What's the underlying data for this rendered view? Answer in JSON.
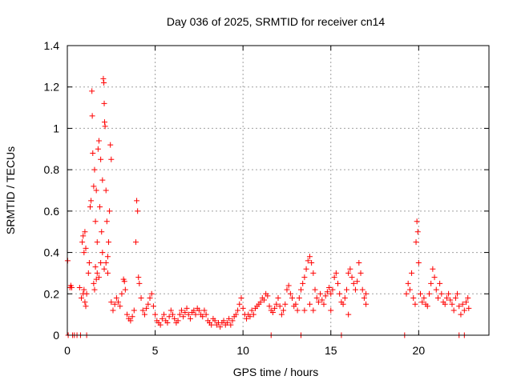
{
  "chart_data": {
    "type": "scatter",
    "title": "Day 036 of 2025, SRMTID for receiver cn14",
    "xlabel": "GPS time / hours",
    "ylabel": "SRMTID / TECUs",
    "xlim": [
      0,
      24
    ],
    "ylim": [
      0,
      1.4
    ],
    "xticks": [
      0,
      5,
      10,
      15,
      20
    ],
    "xtick_labels": [
      "0",
      "5",
      "10",
      "15",
      "20"
    ],
    "yticks": [
      0,
      0.2,
      0.4,
      0.6,
      0.8,
      1.0,
      1.2,
      1.4
    ],
    "ytick_labels": [
      "0",
      "0.2",
      "0.4",
      "0.6",
      "0.8",
      "1",
      "1.2",
      "1.4"
    ],
    "grid": true,
    "marker": "plus",
    "color": "#ff0000",
    "series": [
      {
        "name": "SRMTID",
        "points": [
          [
            0.02,
            0.36
          ],
          [
            0.15,
            0.23
          ],
          [
            0.2,
            0.24
          ],
          [
            0.25,
            0.23
          ],
          [
            0.7,
            0.23
          ],
          [
            0.8,
            0.18
          ],
          [
            0.9,
            0.2
          ],
          [
            0.95,
            0.22
          ],
          [
            1.0,
            0.16
          ],
          [
            1.05,
            0.14
          ],
          [
            1.1,
            0.2
          ],
          [
            0.85,
            0.45
          ],
          [
            0.9,
            0.48
          ],
          [
            0.95,
            0.4
          ],
          [
            1.0,
            0.5
          ],
          [
            1.05,
            0.42
          ],
          [
            1.2,
            0.3
          ],
          [
            1.25,
            0.35
          ],
          [
            1.3,
            0.62
          ],
          [
            1.35,
            0.65
          ],
          [
            1.4,
            1.18
          ],
          [
            1.42,
            1.06
          ],
          [
            1.45,
            0.88
          ],
          [
            1.5,
            0.72
          ],
          [
            1.55,
            0.8
          ],
          [
            1.6,
            0.55
          ],
          [
            1.65,
            0.7
          ],
          [
            1.7,
            0.45
          ],
          [
            1.75,
            0.9
          ],
          [
            1.8,
            0.94
          ],
          [
            1.85,
            0.62
          ],
          [
            1.9,
            0.85
          ],
          [
            1.95,
            0.5
          ],
          [
            2.0,
            0.75
          ],
          [
            2.05,
            1.24
          ],
          [
            2.08,
            1.22
          ],
          [
            2.1,
            1.12
          ],
          [
            2.12,
            1.03
          ],
          [
            2.15,
            1.01
          ],
          [
            2.2,
            0.7
          ],
          [
            2.25,
            0.55
          ],
          [
            2.3,
            0.38
          ],
          [
            2.35,
            0.45
          ],
          [
            2.4,
            0.6
          ],
          [
            2.45,
            0.92
          ],
          [
            2.5,
            0.85
          ],
          [
            1.6,
            0.33
          ],
          [
            1.7,
            0.3
          ],
          [
            1.8,
            0.28
          ],
          [
            1.9,
            0.35
          ],
          [
            2.0,
            0.4
          ],
          [
            2.1,
            0.32
          ],
          [
            1.5,
            0.25
          ],
          [
            1.55,
            0.22
          ],
          [
            1.65,
            0.27
          ],
          [
            2.2,
            0.35
          ],
          [
            2.3,
            0.3
          ],
          [
            2.5,
            0.16
          ],
          [
            2.6,
            0.12
          ],
          [
            2.7,
            0.15
          ],
          [
            2.8,
            0.18
          ],
          [
            2.9,
            0.16
          ],
          [
            3.0,
            0.14
          ],
          [
            3.1,
            0.2
          ],
          [
            3.2,
            0.27
          ],
          [
            3.25,
            0.26
          ],
          [
            3.3,
            0.22
          ],
          [
            3.4,
            0.1
          ],
          [
            3.5,
            0.08
          ],
          [
            3.6,
            0.07
          ],
          [
            3.7,
            0.09
          ],
          [
            3.8,
            0.12
          ],
          [
            3.9,
            0.45
          ],
          [
            3.95,
            0.65
          ],
          [
            4.0,
            0.6
          ],
          [
            4.05,
            0.28
          ],
          [
            4.1,
            0.25
          ],
          [
            4.2,
            0.18
          ],
          [
            4.3,
            0.12
          ],
          [
            4.4,
            0.1
          ],
          [
            4.5,
            0.13
          ],
          [
            4.6,
            0.15
          ],
          [
            4.7,
            0.18
          ],
          [
            4.8,
            0.2
          ],
          [
            4.9,
            0.14
          ],
          [
            5.0,
            0.1
          ],
          [
            5.1,
            0.07
          ],
          [
            5.2,
            0.06
          ],
          [
            5.3,
            0.05
          ],
          [
            5.4,
            0.08
          ],
          [
            5.5,
            0.1
          ],
          [
            5.6,
            0.07
          ],
          [
            5.7,
            0.06
          ],
          [
            5.8,
            0.09
          ],
          [
            5.9,
            0.12
          ],
          [
            6.0,
            0.1
          ],
          [
            6.1,
            0.08
          ],
          [
            6.2,
            0.06
          ],
          [
            6.3,
            0.07
          ],
          [
            6.4,
            0.1
          ],
          [
            6.5,
            0.12
          ],
          [
            6.6,
            0.09
          ],
          [
            6.7,
            0.11
          ],
          [
            6.8,
            0.13
          ],
          [
            6.9,
            0.1
          ],
          [
            7.0,
            0.08
          ],
          [
            7.1,
            0.11
          ],
          [
            7.2,
            0.12
          ],
          [
            7.3,
            0.1
          ],
          [
            7.4,
            0.13
          ],
          [
            7.5,
            0.12
          ],
          [
            7.6,
            0.1
          ],
          [
            7.7,
            0.09
          ],
          [
            7.8,
            0.12
          ],
          [
            7.9,
            0.1
          ],
          [
            8.0,
            0.07
          ],
          [
            8.1,
            0.06
          ],
          [
            8.2,
            0.05
          ],
          [
            8.3,
            0.08
          ],
          [
            8.4,
            0.07
          ],
          [
            8.5,
            0.05
          ],
          [
            8.6,
            0.06
          ],
          [
            8.7,
            0.04
          ],
          [
            8.8,
            0.06
          ],
          [
            8.9,
            0.07
          ],
          [
            9.0,
            0.05
          ],
          [
            9.1,
            0.06
          ],
          [
            9.2,
            0.08
          ],
          [
            9.3,
            0.05
          ],
          [
            9.4,
            0.07
          ],
          [
            9.5,
            0.09
          ],
          [
            9.6,
            0.1
          ],
          [
            9.7,
            0.12
          ],
          [
            9.8,
            0.15
          ],
          [
            9.9,
            0.18
          ],
          [
            10.0,
            0.13
          ],
          [
            10.1,
            0.1
          ],
          [
            10.2,
            0.08
          ],
          [
            10.3,
            0.1
          ],
          [
            10.4,
            0.09
          ],
          [
            10.5,
            0.12
          ],
          [
            10.6,
            0.1
          ],
          [
            10.7,
            0.13
          ],
          [
            10.8,
            0.14
          ],
          [
            10.9,
            0.15
          ],
          [
            11.0,
            0.16
          ],
          [
            11.1,
            0.18
          ],
          [
            11.2,
            0.17
          ],
          [
            11.3,
            0.2
          ],
          [
            11.4,
            0.19
          ],
          [
            11.5,
            0.14
          ],
          [
            11.6,
            0.12
          ],
          [
            11.7,
            0.11
          ],
          [
            11.8,
            0.13
          ],
          [
            11.9,
            0.15
          ],
          [
            12.0,
            0.18
          ],
          [
            12.1,
            0.14
          ],
          [
            12.2,
            0.1
          ],
          [
            12.3,
            0.12
          ],
          [
            12.4,
            0.15
          ],
          [
            12.5,
            0.22
          ],
          [
            12.6,
            0.24
          ],
          [
            12.7,
            0.2
          ],
          [
            12.8,
            0.18
          ],
          [
            12.9,
            0.14
          ],
          [
            13.0,
            0.15
          ],
          [
            13.1,
            0.12
          ],
          [
            13.2,
            0.18
          ],
          [
            13.3,
            0.22
          ],
          [
            13.4,
            0.25
          ],
          [
            13.5,
            0.28
          ],
          [
            13.6,
            0.32
          ],
          [
            13.7,
            0.36
          ],
          [
            13.8,
            0.38
          ],
          [
            13.9,
            0.35
          ],
          [
            14.0,
            0.3
          ],
          [
            14.1,
            0.22
          ],
          [
            14.2,
            0.18
          ],
          [
            14.3,
            0.16
          ],
          [
            14.4,
            0.2
          ],
          [
            14.5,
            0.17
          ],
          [
            14.6,
            0.15
          ],
          [
            14.7,
            0.19
          ],
          [
            14.8,
            0.21
          ],
          [
            14.9,
            0.23
          ],
          [
            15.0,
            0.2
          ],
          [
            15.1,
            0.22
          ],
          [
            15.2,
            0.28
          ],
          [
            15.3,
            0.3
          ],
          [
            15.4,
            0.25
          ],
          [
            15.5,
            0.2
          ],
          [
            15.6,
            0.16
          ],
          [
            15.7,
            0.15
          ],
          [
            15.8,
            0.18
          ],
          [
            15.9,
            0.22
          ],
          [
            16.0,
            0.3
          ],
          [
            16.1,
            0.32
          ],
          [
            16.2,
            0.28
          ],
          [
            16.3,
            0.25
          ],
          [
            16.4,
            0.22
          ],
          [
            16.5,
            0.26
          ],
          [
            16.6,
            0.35
          ],
          [
            16.7,
            0.3
          ],
          [
            16.8,
            0.22
          ],
          [
            16.9,
            0.18
          ],
          [
            17.0,
            0.15
          ],
          [
            13.5,
            0.12
          ],
          [
            13.8,
            0.15
          ],
          [
            14.0,
            0.12
          ],
          [
            15.0,
            0.12
          ],
          [
            16.0,
            0.1
          ],
          [
            17.0,
            0.2
          ],
          [
            19.3,
            0.2
          ],
          [
            19.4,
            0.25
          ],
          [
            19.5,
            0.22
          ],
          [
            19.6,
            0.3
          ],
          [
            19.7,
            0.18
          ],
          [
            19.8,
            0.15
          ],
          [
            19.85,
            0.45
          ],
          [
            19.9,
            0.55
          ],
          [
            19.95,
            0.5
          ],
          [
            20.0,
            0.35
          ],
          [
            20.1,
            0.2
          ],
          [
            20.2,
            0.16
          ],
          [
            20.3,
            0.18
          ],
          [
            20.4,
            0.15
          ],
          [
            20.5,
            0.14
          ],
          [
            20.6,
            0.2
          ],
          [
            20.7,
            0.25
          ],
          [
            20.8,
            0.32
          ],
          [
            20.9,
            0.28
          ],
          [
            21.0,
            0.22
          ],
          [
            21.1,
            0.18
          ],
          [
            21.2,
            0.25
          ],
          [
            21.3,
            0.2
          ],
          [
            21.4,
            0.16
          ],
          [
            21.5,
            0.15
          ],
          [
            21.6,
            0.18
          ],
          [
            21.7,
            0.2
          ],
          [
            21.8,
            0.17
          ],
          [
            21.9,
            0.15
          ],
          [
            22.0,
            0.12
          ],
          [
            22.1,
            0.18
          ],
          [
            22.2,
            0.2
          ],
          [
            22.3,
            0.14
          ],
          [
            22.4,
            0.1
          ],
          [
            22.5,
            0.15
          ],
          [
            22.6,
            0.12
          ],
          [
            22.7,
            0.16
          ],
          [
            22.8,
            0.18
          ],
          [
            22.85,
            0.13
          ],
          [
            0.05,
            0.0
          ],
          [
            0.3,
            0.0
          ],
          [
            0.4,
            0.0
          ],
          [
            0.55,
            0.0
          ],
          [
            0.75,
            0.0
          ],
          [
            1.1,
            0.0
          ],
          [
            11.6,
            0.0
          ],
          [
            13.3,
            0.0
          ],
          [
            15.6,
            0.0
          ],
          [
            19.2,
            0.0
          ],
          [
            22.3,
            0.0
          ],
          [
            22.6,
            0.0
          ]
        ]
      }
    ]
  }
}
